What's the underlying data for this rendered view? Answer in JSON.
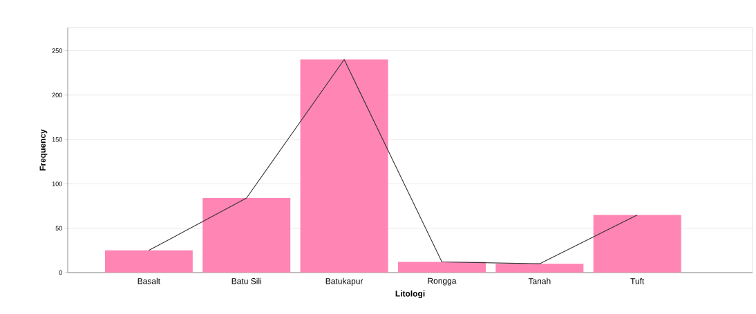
{
  "chart_data": {
    "type": "bar",
    "xlabel": "Litologi",
    "ylabel": "Frequency",
    "categories": [
      "Basalt",
      "Batu Sili",
      "Batukapur",
      "Rongga",
      "Tanah",
      "Tuft"
    ],
    "series": [
      {
        "color": "#ff85b4",
        "values": [
          25,
          84,
          240,
          12,
          10,
          65
        ]
      },
      {
        "type": "line",
        "color": "#333333",
        "values": [
          25,
          84,
          240,
          12,
          10,
          65
        ]
      }
    ],
    "ylim": [
      0,
      276
    ],
    "yticks": [
      0,
      50,
      100,
      150,
      200,
      250
    ],
    "grid": "y",
    "marker": "none"
  }
}
